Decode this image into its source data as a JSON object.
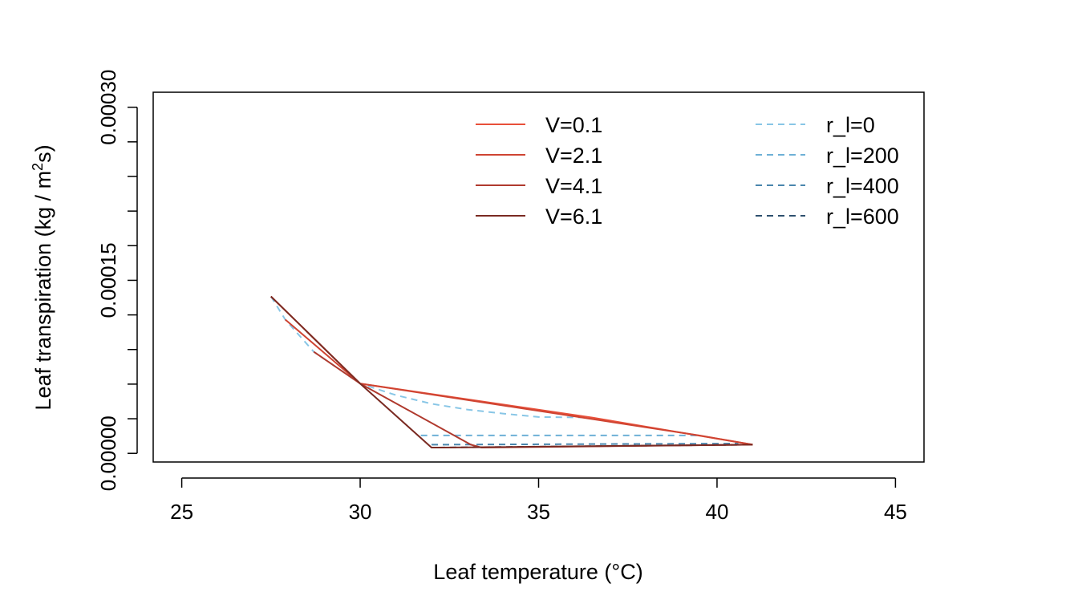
{
  "chart_data": {
    "type": "line",
    "title": "",
    "xlabel": "Leaf temperature (°C)",
    "ylabel_main": "Leaf transpiration (kg / m",
    "ylabel_sup": "2",
    "ylabel_end": "s)",
    "xlim": [
      24.2,
      45.8
    ],
    "ylim": [
      -7.5e-06,
      0.000313
    ],
    "xticks": [
      25,
      30,
      35,
      40,
      45
    ],
    "xtick_labels": [
      "25",
      "30",
      "35",
      "40",
      "45"
    ],
    "yticks": [
      0,
      3e-05,
      6e-05,
      9e-05,
      0.00012,
      0.00015,
      0.00018,
      0.00021,
      0.00024,
      0.00027,
      0.0003
    ],
    "ytick_labels": [
      "0.00000",
      "",
      "",
      "",
      "",
      "0.00015",
      "",
      "",
      "",
      "",
      "0.00030"
    ],
    "legend_wind": [
      {
        "label": "V=0.1",
        "color": "#e8503a"
      },
      {
        "label": "V=2.1",
        "color": "#cf4432"
      },
      {
        "label": "V=4.1",
        "color": "#b03a2e"
      },
      {
        "label": "V=6.1",
        "color": "#7a2a22"
      }
    ],
    "legend_resistance": [
      {
        "label": "r_l=0",
        "color": "#88c6e6"
      },
      {
        "label": "r_l=200",
        "color": "#6eb0d6"
      },
      {
        "label": "r_l=400",
        "color": "#4a86ad"
      },
      {
        "label": "r_l=600",
        "color": "#2e506e"
      }
    ],
    "series_wind": [
      {
        "name": "V=0.1",
        "color": "#e8503a",
        "points": [
          [
            27.5,
            0.000136
          ],
          [
            30.0,
            6.05e-05
          ],
          [
            36.5,
            3.1e-05
          ],
          [
            41.0,
            7.5e-06
          ]
        ]
      },
      {
        "name": "V=2.1",
        "color": "#cf4432",
        "points": [
          [
            27.9,
            0.000116
          ],
          [
            30.0,
            6.05e-05
          ],
          [
            39.5,
            1.55e-05
          ],
          [
            41.0,
            7.5e-06
          ]
        ]
      },
      {
        "name": "V=4.1",
        "color": "#b03a2e",
        "points": [
          [
            28.7,
            8.8e-05
          ],
          [
            30.0,
            6.05e-05
          ],
          [
            33.1,
            7.5e-06
          ],
          [
            33.4,
            5e-06
          ],
          [
            41.0,
            7.5e-06
          ]
        ]
      },
      {
        "name": "V=6.1",
        "color": "#7a2a22",
        "points": [
          [
            27.5,
            0.000136
          ],
          [
            30.0,
            6.05e-05
          ],
          [
            32.0,
            5e-06
          ],
          [
            32.3,
            5e-06
          ],
          [
            41.0,
            7.5e-06
          ]
        ]
      }
    ],
    "series_resistance": [
      {
        "name": "r_l=0",
        "color": "#88c6e6",
        "points": [
          [
            27.5,
            0.000136
          ],
          [
            27.9,
            0.000116
          ],
          [
            28.7,
            8.8e-05
          ],
          [
            30.0,
            6.05e-05
          ],
          [
            31.0,
            5.05e-05
          ],
          [
            32.0,
            4.3e-05
          ],
          [
            33.0,
            3.8e-05
          ],
          [
            34.0,
            3.45e-05
          ],
          [
            35.0,
            3.15e-05
          ],
          [
            36.5,
            3.1e-05
          ]
        ]
      },
      {
        "name": "r_l=200",
        "color": "#6eb0d6",
        "points": [
          [
            31.7,
            1.55e-05
          ],
          [
            39.5,
            1.55e-05
          ]
        ]
      },
      {
        "name": "r_l=400",
        "color": "#4a86ad",
        "points": [
          [
            32.0,
            7.5e-06
          ],
          [
            40.6,
            8.5e-06
          ]
        ]
      },
      {
        "name": "r_l=600",
        "color": "#2e506e",
        "points": [
          [
            32.2,
            5e-06
          ],
          [
            41.0,
            7.5e-06
          ]
        ]
      }
    ]
  }
}
